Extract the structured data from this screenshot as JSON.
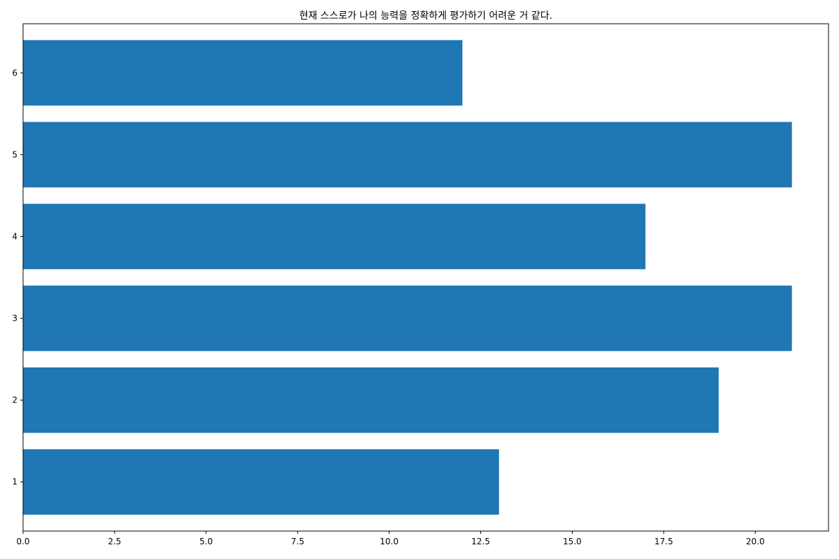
{
  "chart_data": {
    "type": "bar",
    "orientation": "horizontal",
    "title": "현재 스스로가 나의 능력을 정확하게 평가하기 어려운 거 같다.",
    "xlabel": "",
    "ylabel": "",
    "categories": [
      "1",
      "2",
      "3",
      "4",
      "5",
      "6"
    ],
    "values": [
      13,
      19,
      21,
      17,
      21,
      12
    ],
    "xlim": [
      0,
      22
    ],
    "xticks": [
      0.0,
      2.5,
      5.0,
      7.5,
      10.0,
      12.5,
      15.0,
      17.5,
      20.0
    ],
    "xtick_labels": [
      "0.0",
      "2.5",
      "5.0",
      "7.5",
      "10.0",
      "12.5",
      "15.0",
      "17.5",
      "20.0"
    ],
    "grid": false,
    "legend": "none",
    "bar_color": "#1f77b4"
  }
}
